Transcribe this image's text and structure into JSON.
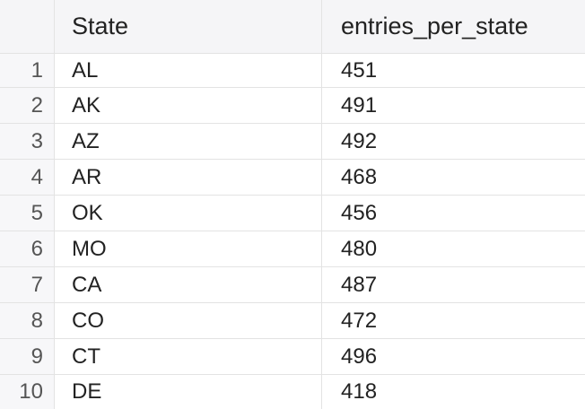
{
  "table": {
    "columns": [
      "State",
      "entries_per_state"
    ],
    "rows": [
      {
        "index": "1",
        "state": "AL",
        "entries": "451"
      },
      {
        "index": "2",
        "state": "AK",
        "entries": "491"
      },
      {
        "index": "3",
        "state": "AZ",
        "entries": "492"
      },
      {
        "index": "4",
        "state": "AR",
        "entries": "468"
      },
      {
        "index": "5",
        "state": "OK",
        "entries": "456"
      },
      {
        "index": "6",
        "state": "MO",
        "entries": "480"
      },
      {
        "index": "7",
        "state": "CA",
        "entries": "487"
      },
      {
        "index": "8",
        "state": "CO",
        "entries": "472"
      },
      {
        "index": "9",
        "state": "CT",
        "entries": "496"
      },
      {
        "index": "10",
        "state": "DE",
        "entries": "418"
      }
    ]
  }
}
